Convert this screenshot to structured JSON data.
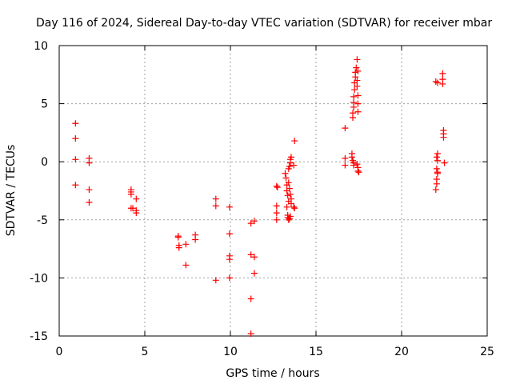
{
  "chart_data": {
    "type": "scatter",
    "title": "Day 116 of 2024, Sidereal Day-to-day VTEC variation (SDTVAR) for receiver mbar",
    "xlabel": "GPS time / hours",
    "ylabel": "SDTVAR / TECUs",
    "xlim": [
      0,
      25
    ],
    "ylim": [
      -15,
      10
    ],
    "xticks": [
      0,
      5,
      10,
      15,
      20,
      25
    ],
    "yticks": [
      -15,
      -10,
      -5,
      0,
      5,
      10
    ],
    "grid": true,
    "marker": "+",
    "color": "#ff0000",
    "series": [
      {
        "name": "SDTVAR",
        "points": [
          [
            0.95,
            3.3
          ],
          [
            0.95,
            2.0
          ],
          [
            0.95,
            0.2
          ],
          [
            0.95,
            -2.0
          ],
          [
            1.75,
            0.3
          ],
          [
            1.75,
            -0.1
          ],
          [
            1.75,
            -2.4
          ],
          [
            1.75,
            -3.5
          ],
          [
            4.2,
            -2.4
          ],
          [
            4.2,
            -2.6
          ],
          [
            4.2,
            -2.8
          ],
          [
            4.2,
            -4.0
          ],
          [
            4.3,
            -4.0
          ],
          [
            4.5,
            -3.2
          ],
          [
            4.5,
            -4.2
          ],
          [
            4.5,
            -4.4
          ],
          [
            6.95,
            -6.4
          ],
          [
            6.95,
            -6.5
          ],
          [
            7.0,
            -7.2
          ],
          [
            7.0,
            -7.4
          ],
          [
            7.4,
            -7.1
          ],
          [
            7.4,
            -8.9
          ],
          [
            7.95,
            -6.3
          ],
          [
            7.95,
            -6.7
          ],
          [
            9.15,
            -3.2
          ],
          [
            9.15,
            -3.8
          ],
          [
            9.15,
            -10.2
          ],
          [
            9.95,
            -3.9
          ],
          [
            9.95,
            -6.2
          ],
          [
            9.95,
            -8.1
          ],
          [
            9.95,
            -8.4
          ],
          [
            9.95,
            -10.0
          ],
          [
            11.2,
            -5.3
          ],
          [
            11.2,
            -8.0
          ],
          [
            11.2,
            -11.8
          ],
          [
            11.2,
            -14.8
          ],
          [
            11.4,
            -5.1
          ],
          [
            11.4,
            -8.2
          ],
          [
            11.4,
            -9.6
          ],
          [
            12.7,
            -2.1
          ],
          [
            12.75,
            -2.2
          ],
          [
            12.7,
            -3.8
          ],
          [
            12.7,
            -4.4
          ],
          [
            12.7,
            -5.0
          ],
          [
            13.2,
            -1.0
          ],
          [
            13.25,
            -1.4
          ],
          [
            13.3,
            -2.0
          ],
          [
            13.3,
            -2.5
          ],
          [
            13.35,
            -2.9
          ],
          [
            13.4,
            -3.4
          ],
          [
            13.3,
            -3.9
          ],
          [
            13.35,
            -4.6
          ],
          [
            13.35,
            -4.8
          ],
          [
            13.4,
            -5.0
          ],
          [
            13.45,
            -4.9
          ],
          [
            13.5,
            -4.7
          ],
          [
            13.4,
            -1.8
          ],
          [
            13.4,
            -0.6
          ],
          [
            13.45,
            -0.4
          ],
          [
            13.5,
            -0.1
          ],
          [
            13.5,
            0.2
          ],
          [
            13.55,
            0.4
          ],
          [
            13.45,
            -2.3
          ],
          [
            13.5,
            -2.8
          ],
          [
            13.55,
            -3.2
          ],
          [
            13.55,
            -3.6
          ],
          [
            13.7,
            -0.3
          ],
          [
            13.75,
            1.8
          ],
          [
            13.7,
            -3.9
          ],
          [
            13.75,
            -4.0
          ],
          [
            16.7,
            2.9
          ],
          [
            16.7,
            0.3
          ],
          [
            16.7,
            -0.3
          ],
          [
            17.1,
            0.7
          ],
          [
            17.1,
            0.4
          ],
          [
            17.15,
            0.1
          ],
          [
            17.2,
            -0.1
          ],
          [
            17.2,
            -0.3
          ],
          [
            17.15,
            3.8
          ],
          [
            17.15,
            4.2
          ],
          [
            17.2,
            4.7
          ],
          [
            17.2,
            5.1
          ],
          [
            17.2,
            5.6
          ],
          [
            17.25,
            6.2
          ],
          [
            17.25,
            6.8
          ],
          [
            17.3,
            7.3
          ],
          [
            17.3,
            7.7
          ],
          [
            17.35,
            8.1
          ],
          [
            17.4,
            8.8
          ],
          [
            17.45,
            7.8
          ],
          [
            17.4,
            7.0
          ],
          [
            17.4,
            6.5
          ],
          [
            17.45,
            5.7
          ],
          [
            17.45,
            5.0
          ],
          [
            17.45,
            4.3
          ],
          [
            17.4,
            -0.2
          ],
          [
            17.45,
            -0.5
          ],
          [
            17.45,
            -0.8
          ],
          [
            17.5,
            -0.9
          ],
          [
            22.0,
            6.9
          ],
          [
            22.1,
            6.8
          ],
          [
            22.05,
            0.4
          ],
          [
            22.1,
            0.1
          ],
          [
            22.05,
            -0.6
          ],
          [
            22.1,
            -0.9
          ],
          [
            22.1,
            -1.0
          ],
          [
            22.05,
            -1.5
          ],
          [
            22.05,
            -1.9
          ],
          [
            22.0,
            -2.4
          ],
          [
            22.1,
            0.7
          ],
          [
            22.4,
            7.6
          ],
          [
            22.4,
            7.1
          ],
          [
            22.4,
            6.7
          ],
          [
            22.45,
            2.7
          ],
          [
            22.45,
            2.4
          ],
          [
            22.45,
            2.1
          ],
          [
            22.5,
            -0.1
          ]
        ]
      }
    ]
  }
}
